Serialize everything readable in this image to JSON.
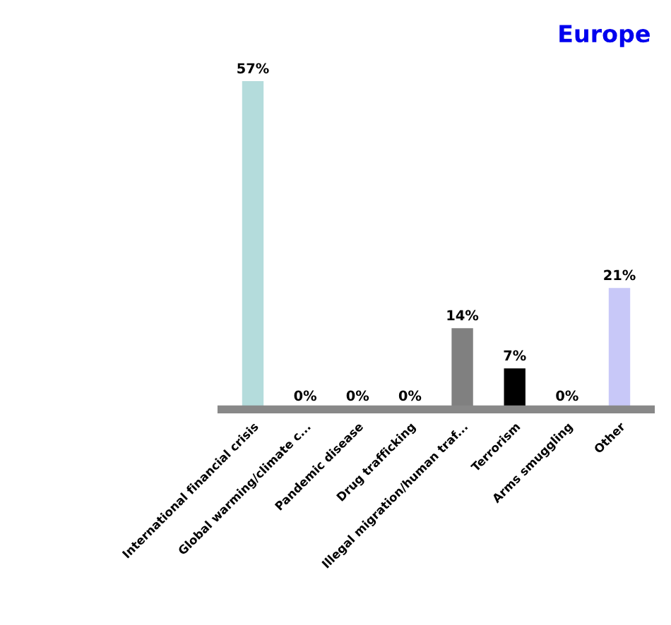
{
  "chart_data": {
    "type": "bar",
    "title": "Europe",
    "categories": [
      "International financial crisis",
      "Global warming/climate c...",
      "Pandemic disease",
      "Drug trafficking",
      "Illegal migration/human traf...",
      "Terrorism",
      "Arms smuggling",
      "Other"
    ],
    "values": [
      57,
      0,
      0,
      0,
      14,
      7,
      0,
      21
    ],
    "colors": [
      "#b4dcdc",
      "#2a2a80",
      "#1f7070",
      "#6b8a1e",
      "#808080",
      "#000000",
      "#1f4e8c",
      "#c8c8f8"
    ],
    "value_labels": [
      "57%",
      "0%",
      "0%",
      "0%",
      "14%",
      "7%",
      "0%",
      "21%"
    ],
    "grid": false,
    "legend": false
  }
}
